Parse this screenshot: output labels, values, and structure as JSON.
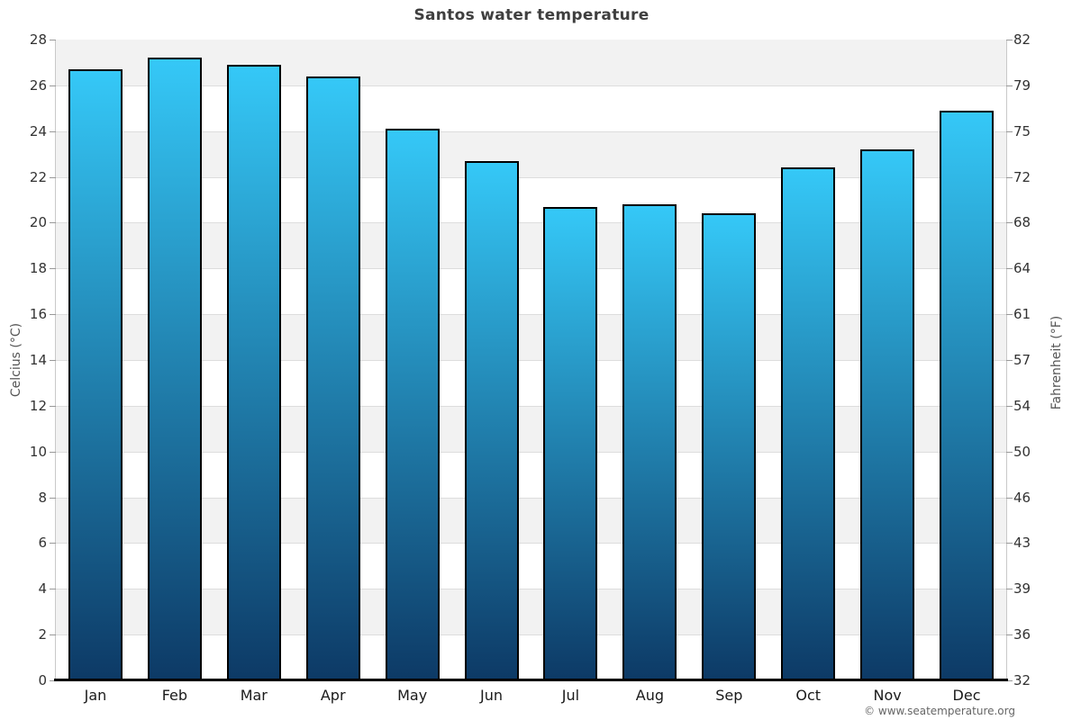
{
  "title": "Santos water temperature",
  "footer": "© www.seatemperature.org",
  "chart_data": {
    "type": "bar",
    "title": "Santos water temperature",
    "categories": [
      "Jan",
      "Feb",
      "Mar",
      "Apr",
      "May",
      "Jun",
      "Jul",
      "Aug",
      "Sep",
      "Oct",
      "Nov",
      "Dec"
    ],
    "values": [
      26.7,
      27.2,
      26.9,
      26.4,
      24.1,
      22.7,
      20.7,
      20.8,
      20.4,
      22.4,
      23.2,
      24.9
    ],
    "unit": "°C",
    "ylabel_left": "Celcius (°C)",
    "ylabel_right": "Fahrenheit (°F)",
    "xlabel": "",
    "ylim": [
      0,
      28
    ],
    "ytick_step": 2,
    "celsius_tick_labels_top_to_bottom": [
      "28",
      "26",
      "24",
      "22",
      "20",
      "18",
      "16",
      "14",
      "12",
      "10",
      "8",
      "6",
      "4",
      "2",
      "0"
    ],
    "fahrenheit_tick_labels_top_to_bottom": [
      "82",
      "79",
      "75",
      "72",
      "68",
      "64",
      "61",
      "57",
      "54",
      "50",
      "46",
      "43",
      "39",
      "36",
      "32"
    ],
    "legend": "none",
    "grid": "alternating horizontal bands every 2°C, gray band from 28-26 downward alternating with white",
    "colors": {
      "bar_gradient_top": "#35c8f7",
      "bar_gradient_bottom": "#0d3a66",
      "bar_border": "#000000",
      "band_gray": "#f2f2f2",
      "band_white": "#ffffff",
      "gridline": "#dddddd",
      "axis_line": "#c9c9c9",
      "baseline": "#000000",
      "title_text": "#3f3f3f",
      "tick_text": "#333333",
      "axis_title_text": "#555555",
      "footer_text": "#666666"
    }
  }
}
